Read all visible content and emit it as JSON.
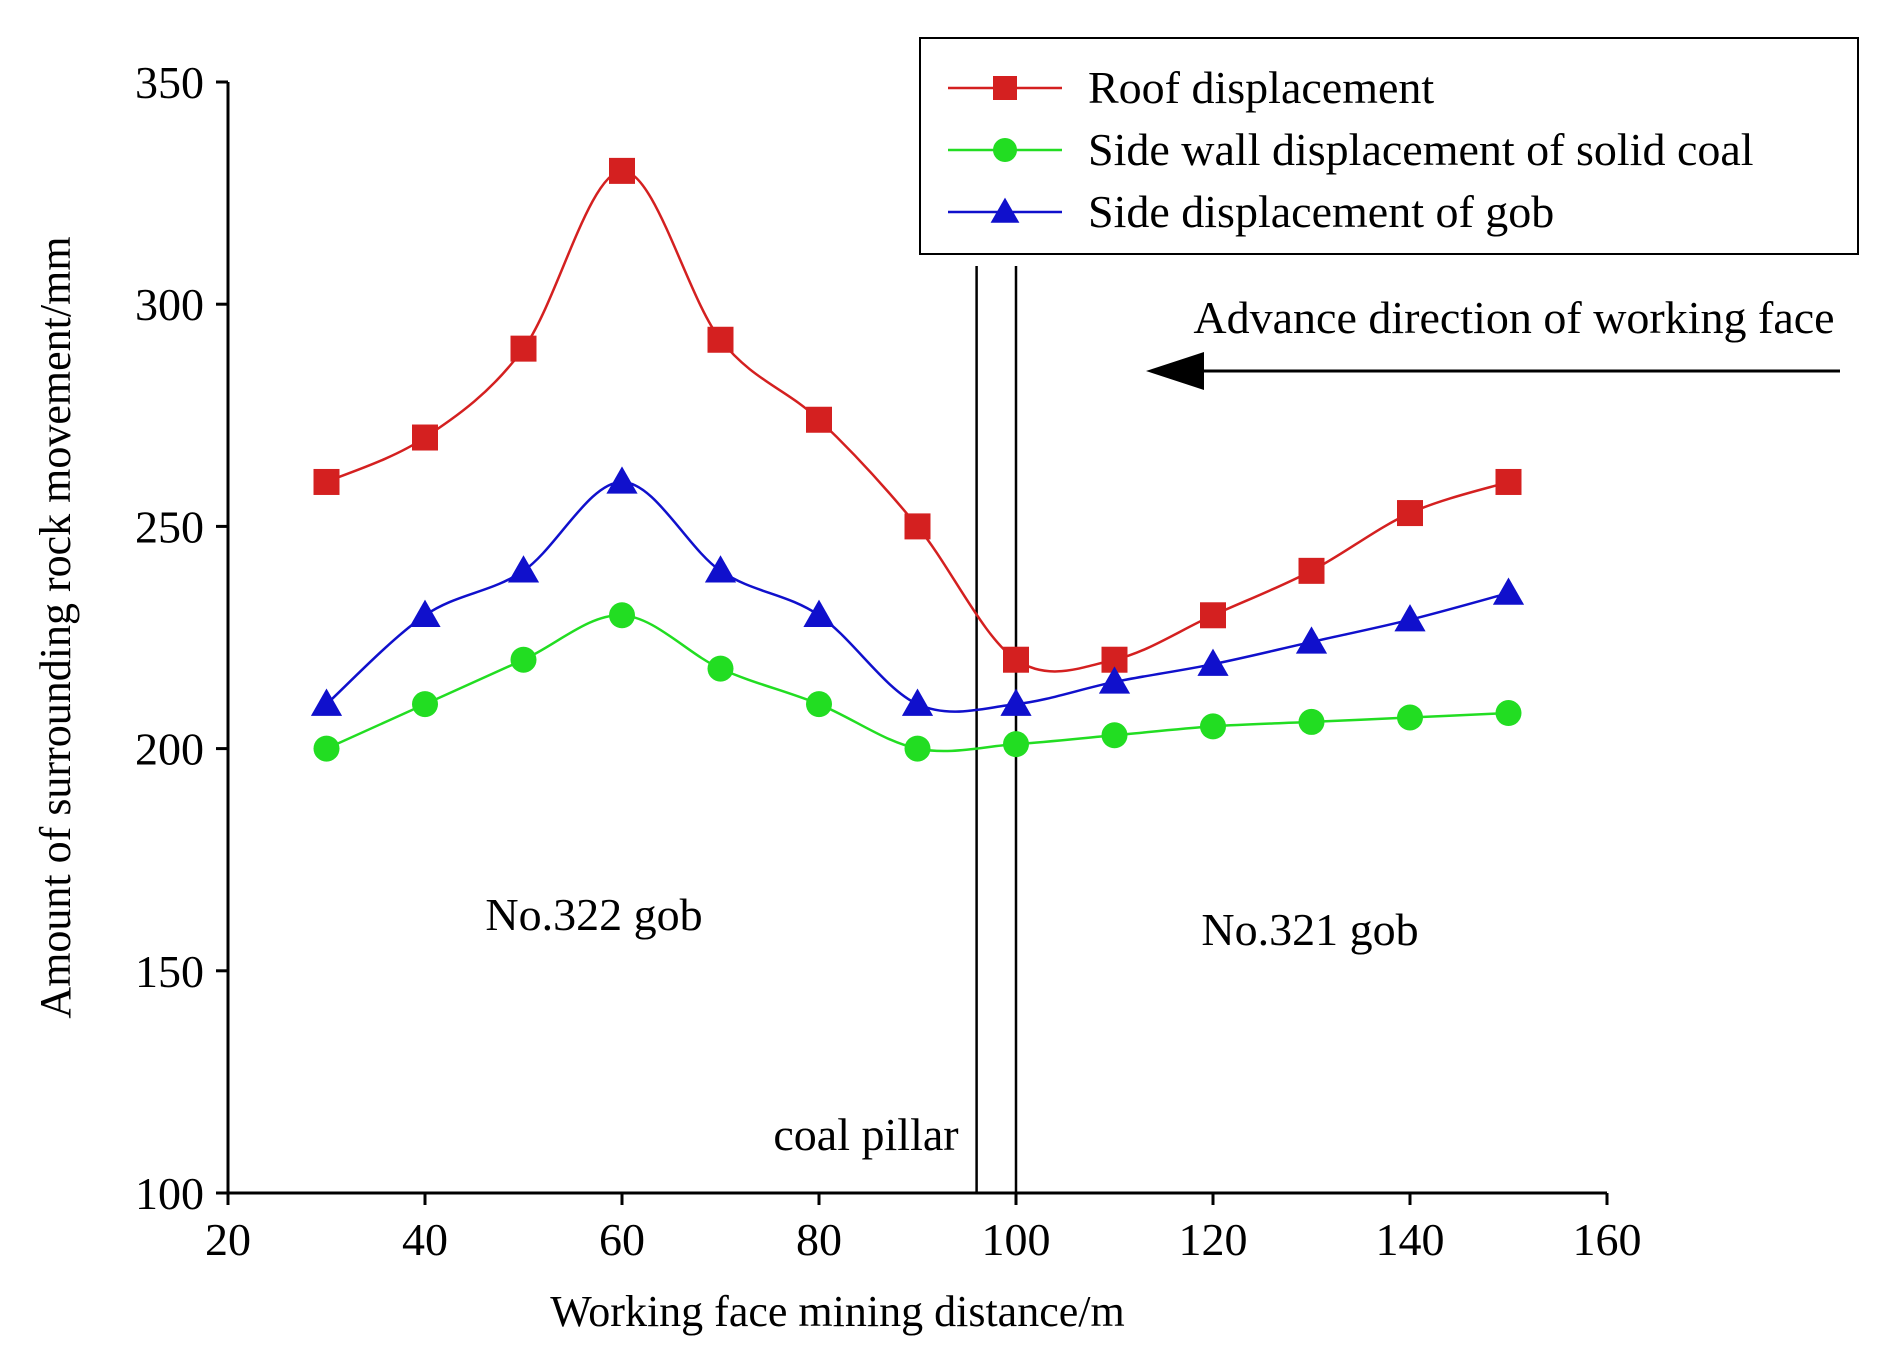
{
  "chart_data": {
    "type": "line",
    "title": "",
    "xlabel": "Working face mining distance/m",
    "ylabel": "Amount of surrounding rock movement/mm",
    "xlim": [
      20,
      160
    ],
    "ylim": [
      100,
      350
    ],
    "xticks": [
      20,
      40,
      60,
      80,
      100,
      120,
      140,
      160
    ],
    "yticks": [
      100,
      150,
      200,
      250,
      300,
      350
    ],
    "grid": false,
    "legend_position": "top-right",
    "x": [
      30,
      40,
      50,
      60,
      70,
      80,
      90,
      100,
      110,
      120,
      130,
      140,
      150
    ],
    "series": [
      {
        "name": "Roof displacement",
        "color": "#d42020",
        "marker": "square",
        "values": [
          260,
          270,
          290,
          330,
          292,
          274,
          250,
          220,
          220,
          230,
          240,
          253,
          260
        ]
      },
      {
        "name": "Side wall displacement of solid coal",
        "color": "#22dd22",
        "marker": "circle",
        "values": [
          200,
          210,
          220,
          230,
          218,
          210,
          200,
          201,
          203,
          205,
          206,
          207,
          208
        ]
      },
      {
        "name": "Side displacement of gob",
        "color": "#1010cc",
        "marker": "triangle",
        "values": [
          210,
          230,
          240,
          260,
          240,
          230,
          210,
          210,
          215,
          219,
          224,
          229,
          235
        ]
      }
    ],
    "vertical_lines_x": [
      96,
      100
    ],
    "annotations": {
      "left_region": "No.322 gob",
      "right_region": "No.321 gob",
      "pillar": "coal pillar",
      "direction": "Advance direction of working face"
    }
  }
}
